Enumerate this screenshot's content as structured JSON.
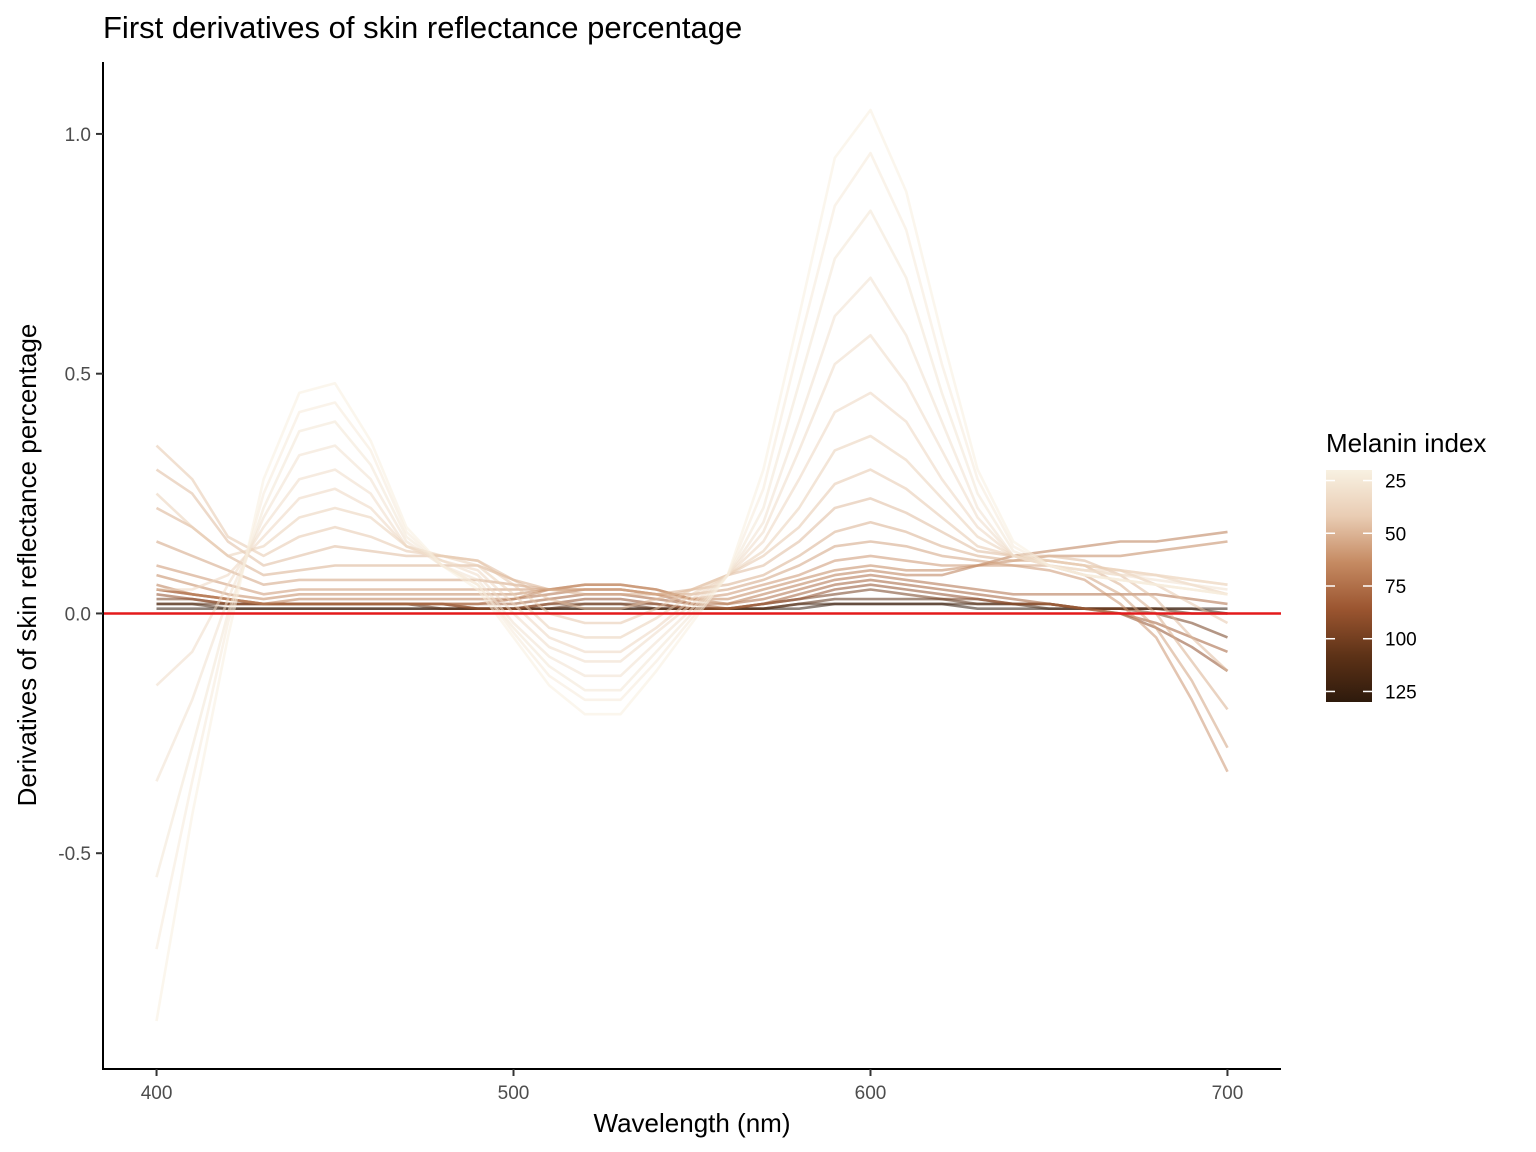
{
  "chart_data": {
    "type": "line",
    "title": "First derivatives of skin reflectance percentage",
    "xlabel": "Wavelength (nm)",
    "ylabel": "Derivatives of skin reflectance percentage",
    "xlim": [
      385,
      715
    ],
    "ylim": [
      -0.95,
      1.15
    ],
    "x_ticks": [
      400,
      500,
      600,
      700
    ],
    "x_tick_labels": [
      "400",
      "500",
      "600",
      "700"
    ],
    "y_ticks": [
      -0.5,
      0.0,
      0.5,
      1.0
    ],
    "y_tick_labels": [
      "-0.5",
      "0.0",
      "0.5",
      "1.0"
    ],
    "grid": false,
    "x": [
      400,
      410,
      420,
      430,
      440,
      450,
      460,
      470,
      480,
      490,
      500,
      510,
      520,
      530,
      540,
      550,
      560,
      570,
      580,
      590,
      600,
      610,
      620,
      630,
      640,
      650,
      660,
      670,
      680,
      690,
      700
    ],
    "series_groups": [
      {
        "melanin_index": 22,
        "values": [
          -0.85,
          -0.42,
          -0.05,
          0.28,
          0.46,
          0.48,
          0.36,
          0.18,
          0.1,
          0.05,
          -0.05,
          -0.15,
          -0.21,
          -0.21,
          -0.12,
          -0.02,
          0.08,
          0.3,
          0.62,
          0.95,
          1.05,
          0.88,
          0.58,
          0.3,
          0.15,
          0.1,
          0.08,
          0.07,
          0.06,
          0.05,
          0.04
        ]
      },
      {
        "melanin_index": 24,
        "values": [
          -0.7,
          -0.35,
          -0.02,
          0.25,
          0.42,
          0.44,
          0.34,
          0.17,
          0.1,
          0.06,
          -0.04,
          -0.13,
          -0.18,
          -0.18,
          -0.1,
          -0.01,
          0.08,
          0.26,
          0.56,
          0.85,
          0.96,
          0.8,
          0.52,
          0.28,
          0.14,
          0.1,
          0.08,
          0.07,
          0.06,
          0.05,
          0.04
        ]
      },
      {
        "melanin_index": 27,
        "values": [
          -0.55,
          -0.28,
          0.0,
          0.22,
          0.38,
          0.4,
          0.31,
          0.16,
          0.1,
          0.06,
          -0.03,
          -0.11,
          -0.16,
          -0.16,
          -0.08,
          0.0,
          0.08,
          0.22,
          0.48,
          0.74,
          0.84,
          0.7,
          0.46,
          0.25,
          0.13,
          0.1,
          0.08,
          0.07,
          0.06,
          0.05,
          0.04
        ]
      },
      {
        "melanin_index": 30,
        "values": [
          -0.35,
          -0.18,
          0.03,
          0.2,
          0.33,
          0.35,
          0.28,
          0.15,
          0.1,
          0.07,
          -0.02,
          -0.09,
          -0.13,
          -0.13,
          -0.06,
          0.01,
          0.08,
          0.19,
          0.4,
          0.62,
          0.7,
          0.58,
          0.4,
          0.22,
          0.12,
          0.1,
          0.09,
          0.08,
          0.07,
          0.06,
          0.05
        ]
      },
      {
        "melanin_index": 33,
        "values": [
          -0.15,
          -0.08,
          0.06,
          0.18,
          0.28,
          0.3,
          0.25,
          0.14,
          0.11,
          0.08,
          0.0,
          -0.07,
          -0.1,
          -0.1,
          -0.04,
          0.02,
          0.08,
          0.17,
          0.34,
          0.52,
          0.58,
          0.48,
          0.34,
          0.2,
          0.12,
          0.1,
          0.09,
          0.08,
          0.08,
          0.07,
          0.06
        ]
      },
      {
        "melanin_index": 36,
        "values": [
          0.05,
          0.05,
          0.08,
          0.16,
          0.24,
          0.26,
          0.22,
          0.14,
          0.11,
          0.09,
          0.02,
          -0.05,
          -0.08,
          -0.08,
          -0.03,
          0.03,
          0.08,
          0.15,
          0.28,
          0.42,
          0.46,
          0.4,
          0.28,
          0.18,
          0.12,
          0.1,
          0.09,
          0.09,
          0.08,
          0.07,
          0.06
        ]
      },
      {
        "melanin_index": 40,
        "values": [
          0.25,
          0.18,
          0.12,
          0.14,
          0.2,
          0.22,
          0.2,
          0.14,
          0.12,
          0.1,
          0.04,
          -0.03,
          -0.05,
          -0.05,
          -0.01,
          0.04,
          0.08,
          0.13,
          0.22,
          0.34,
          0.37,
          0.32,
          0.24,
          0.16,
          0.12,
          0.11,
          0.1,
          0.09,
          0.08,
          0.06,
          0.04
        ]
      },
      {
        "melanin_index": 44,
        "values": [
          0.35,
          0.28,
          0.16,
          0.12,
          0.16,
          0.18,
          0.16,
          0.13,
          0.12,
          0.11,
          0.06,
          0.0,
          -0.02,
          -0.02,
          0.01,
          0.05,
          0.08,
          0.12,
          0.18,
          0.27,
          0.3,
          0.26,
          0.2,
          0.14,
          0.12,
          0.11,
          0.1,
          0.09,
          0.06,
          0.02,
          -0.02
        ]
      },
      {
        "melanin_index": 48,
        "values": [
          0.3,
          0.25,
          0.15,
          0.1,
          0.12,
          0.14,
          0.13,
          0.12,
          0.12,
          0.11,
          0.07,
          0.03,
          0.01,
          0.01,
          0.03,
          0.05,
          0.08,
          0.1,
          0.15,
          0.22,
          0.24,
          0.21,
          0.17,
          0.13,
          0.12,
          0.12,
          0.11,
          0.08,
          0.03,
          -0.05,
          -0.12
        ]
      },
      {
        "melanin_index": 52,
        "values": [
          0.22,
          0.18,
          0.12,
          0.08,
          0.09,
          0.1,
          0.1,
          0.1,
          0.1,
          0.1,
          0.07,
          0.05,
          0.04,
          0.04,
          0.04,
          0.05,
          0.06,
          0.08,
          0.12,
          0.17,
          0.19,
          0.17,
          0.14,
          0.12,
          0.11,
          0.11,
          0.1,
          0.06,
          0.0,
          -0.1,
          -0.2
        ]
      },
      {
        "melanin_index": 56,
        "values": [
          0.15,
          0.12,
          0.09,
          0.06,
          0.07,
          0.07,
          0.07,
          0.07,
          0.07,
          0.07,
          0.06,
          0.05,
          0.05,
          0.05,
          0.04,
          0.04,
          0.05,
          0.07,
          0.1,
          0.14,
          0.15,
          0.14,
          0.12,
          0.11,
          0.1,
          0.1,
          0.08,
          0.04,
          -0.03,
          -0.14,
          -0.28
        ]
      },
      {
        "melanin_index": 60,
        "values": [
          0.1,
          0.08,
          0.06,
          0.04,
          0.05,
          0.05,
          0.05,
          0.05,
          0.05,
          0.05,
          0.05,
          0.05,
          0.05,
          0.05,
          0.04,
          0.03,
          0.04,
          0.06,
          0.08,
          0.11,
          0.12,
          0.11,
          0.1,
          0.1,
          0.1,
          0.09,
          0.07,
          0.02,
          -0.05,
          -0.18,
          -0.33
        ]
      },
      {
        "melanin_index": 65,
        "values": [
          0.08,
          0.06,
          0.04,
          0.03,
          0.04,
          0.04,
          0.04,
          0.04,
          0.04,
          0.04,
          0.04,
          0.05,
          0.06,
          0.06,
          0.05,
          0.03,
          0.03,
          0.05,
          0.07,
          0.09,
          0.1,
          0.09,
          0.09,
          0.1,
          0.11,
          0.12,
          0.12,
          0.12,
          0.13,
          0.14,
          0.15
        ]
      },
      {
        "melanin_index": 70,
        "values": [
          0.06,
          0.04,
          0.03,
          0.02,
          0.03,
          0.03,
          0.03,
          0.03,
          0.03,
          0.03,
          0.03,
          0.05,
          0.06,
          0.06,
          0.05,
          0.03,
          0.02,
          0.04,
          0.06,
          0.08,
          0.09,
          0.08,
          0.08,
          0.1,
          0.12,
          0.13,
          0.14,
          0.15,
          0.15,
          0.16,
          0.17
        ]
      },
      {
        "melanin_index": 76,
        "values": [
          0.05,
          0.04,
          0.03,
          0.02,
          0.02,
          0.02,
          0.02,
          0.02,
          0.02,
          0.02,
          0.03,
          0.04,
          0.05,
          0.05,
          0.04,
          0.02,
          0.02,
          0.03,
          0.05,
          0.07,
          0.08,
          0.07,
          0.06,
          0.05,
          0.04,
          0.04,
          0.04,
          0.04,
          0.04,
          0.03,
          0.02
        ]
      },
      {
        "melanin_index": 82,
        "values": [
          0.05,
          0.04,
          0.03,
          0.02,
          0.02,
          0.02,
          0.02,
          0.02,
          0.02,
          0.02,
          0.02,
          0.03,
          0.04,
          0.04,
          0.03,
          0.02,
          0.01,
          0.02,
          0.04,
          0.06,
          0.07,
          0.06,
          0.05,
          0.04,
          0.03,
          0.02,
          0.01,
          0.0,
          -0.02,
          -0.05,
          -0.08
        ]
      },
      {
        "melanin_index": 90,
        "values": [
          0.04,
          0.03,
          0.02,
          0.02,
          0.02,
          0.02,
          0.02,
          0.02,
          0.02,
          0.01,
          0.01,
          0.02,
          0.03,
          0.03,
          0.02,
          0.01,
          0.01,
          0.02,
          0.03,
          0.05,
          0.06,
          0.05,
          0.04,
          0.03,
          0.02,
          0.02,
          0.01,
          0.0,
          -0.03,
          -0.07,
          -0.12
        ]
      },
      {
        "melanin_index": 100,
        "values": [
          0.03,
          0.03,
          0.02,
          0.02,
          0.02,
          0.02,
          0.02,
          0.02,
          0.02,
          0.01,
          0.01,
          0.02,
          0.02,
          0.02,
          0.02,
          0.01,
          0.01,
          0.02,
          0.03,
          0.04,
          0.05,
          0.04,
          0.03,
          0.03,
          0.02,
          0.02,
          0.01,
          0.01,
          0.0,
          -0.02,
          -0.05
        ]
      },
      {
        "melanin_index": 110,
        "values": [
          0.02,
          0.02,
          0.02,
          0.02,
          0.02,
          0.02,
          0.02,
          0.02,
          0.01,
          0.01,
          0.01,
          0.01,
          0.02,
          0.02,
          0.01,
          0.01,
          0.01,
          0.01,
          0.02,
          0.03,
          0.03,
          0.03,
          0.03,
          0.02,
          0.02,
          0.02,
          0.01,
          0.01,
          0.01,
          0.0,
          0.0
        ]
      },
      {
        "melanin_index": 120,
        "values": [
          0.02,
          0.02,
          0.01,
          0.01,
          0.01,
          0.01,
          0.01,
          0.01,
          0.01,
          0.01,
          0.01,
          0.01,
          0.01,
          0.01,
          0.01,
          0.01,
          0.01,
          0.01,
          0.02,
          0.02,
          0.02,
          0.02,
          0.02,
          0.02,
          0.02,
          0.01,
          0.01,
          0.01,
          0.01,
          0.01,
          0.0
        ]
      },
      {
        "melanin_index": 128,
        "values": [
          0.01,
          0.01,
          0.01,
          0.01,
          0.01,
          0.01,
          0.01,
          0.01,
          0.01,
          0.01,
          0.01,
          0.01,
          0.01,
          0.01,
          0.01,
          0.01,
          0.01,
          0.01,
          0.01,
          0.02,
          0.02,
          0.02,
          0.02,
          0.01,
          0.01,
          0.01,
          0.01,
          0.01,
          0.01,
          0.01,
          0.01
        ]
      }
    ],
    "reference_line": {
      "y": 0.0,
      "color": "#e41a1c"
    },
    "legend": {
      "title": "Melanin index",
      "position": "right",
      "min": 20,
      "max": 130,
      "breaks": [
        25,
        50,
        75,
        100,
        125
      ],
      "break_labels": [
        "25",
        "50",
        "75",
        "100",
        "125"
      ],
      "colors": [
        "#f8f1e2",
        "#e9ccb3",
        "#c58a62",
        "#9b5530",
        "#5d3217",
        "#2e1a0c"
      ]
    }
  }
}
